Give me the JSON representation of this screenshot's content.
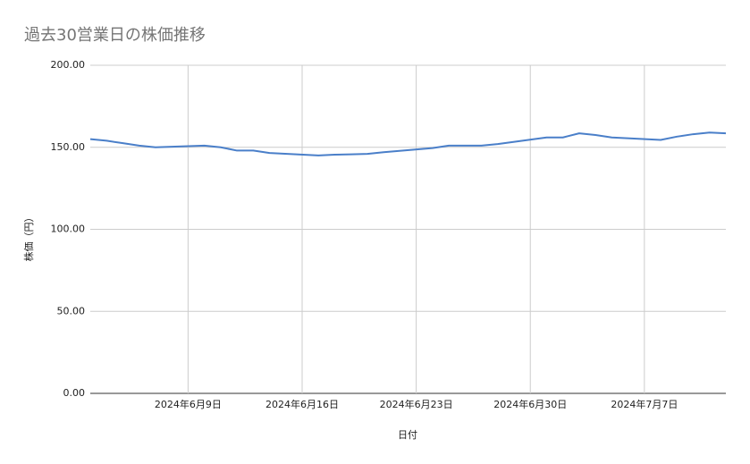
{
  "chart_data": {
    "type": "line",
    "title": "過去30営業日の株価推移",
    "x_label": "日付",
    "y_label": "株価（円）",
    "x": [
      "2024-06-03",
      "2024-06-04",
      "2024-06-05",
      "2024-06-06",
      "2024-06-07",
      "2024-06-10",
      "2024-06-11",
      "2024-06-12",
      "2024-06-13",
      "2024-06-14",
      "2024-06-17",
      "2024-06-18",
      "2024-06-19",
      "2024-06-20",
      "2024-06-21",
      "2024-06-24",
      "2024-06-25",
      "2024-06-26",
      "2024-06-27",
      "2024-06-28",
      "2024-07-01",
      "2024-07-02",
      "2024-07-03",
      "2024-07-04",
      "2024-07-05",
      "2024-07-08",
      "2024-07-09",
      "2024-07-10",
      "2024-07-11",
      "2024-07-12"
    ],
    "series": [
      {
        "color": "#4a7fc9",
        "values": [
          155,
          154,
          152.5,
          151,
          150,
          151,
          150,
          148,
          148,
          146.5,
          145,
          145.5,
          145.7,
          146,
          147,
          149.5,
          151,
          151,
          151,
          152,
          156,
          156,
          158.5,
          157.5,
          156,
          154.5,
          156.5,
          158,
          159,
          158.5
        ]
      }
    ],
    "xlim": [
      "2024-06-03",
      "2024-07-12"
    ],
    "xticks": [
      {
        "value": "2024-06-09",
        "label": "2024年6月9日"
      },
      {
        "value": "2024-06-16",
        "label": "2024年6月16日"
      },
      {
        "value": "2024-06-23",
        "label": "2024年6月23日"
      },
      {
        "value": "2024-06-30",
        "label": "2024年6月30日"
      },
      {
        "value": "2024-07-07",
        "label": "2024年7月7日"
      }
    ],
    "ylim": [
      0,
      200
    ],
    "yticks": [
      {
        "value": 0,
        "label": "0.00"
      },
      {
        "value": 50,
        "label": "50.00"
      },
      {
        "value": 100,
        "label": "100.00"
      },
      {
        "value": 150,
        "label": "150.00"
      },
      {
        "value": 200,
        "label": "200.00"
      }
    ],
    "grid": true
  }
}
